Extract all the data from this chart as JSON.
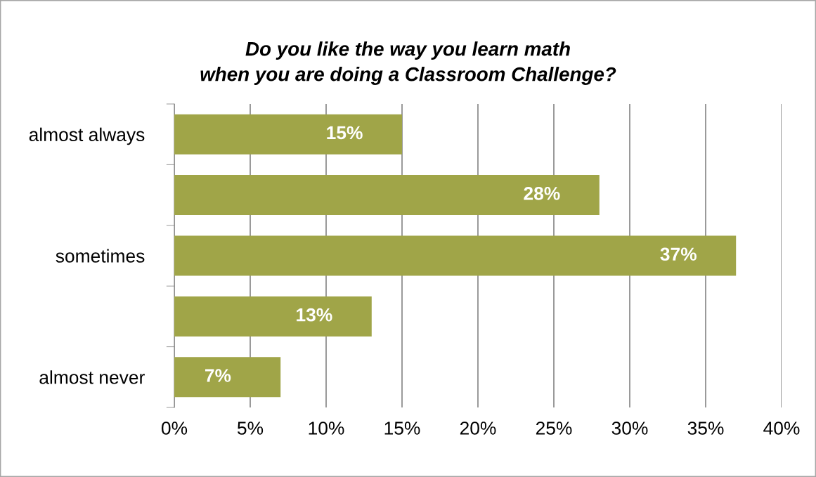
{
  "chart_data": {
    "type": "bar",
    "orientation": "horizontal",
    "title": "Do you like the way you learn math\nwhen you are doing a Classroom Challenge?",
    "categories": [
      "almost always",
      null,
      "sometimes",
      null,
      "almost never"
    ],
    "values": [
      15,
      28,
      37,
      13,
      7
    ],
    "value_labels": [
      "15%",
      "28%",
      "37%",
      "13%",
      "7%"
    ],
    "color": "#a0a548",
    "xlim": [
      0,
      40
    ],
    "xticks": [
      {
        "value": 0,
        "label": "0%"
      },
      {
        "value": 5,
        "label": "5%"
      },
      {
        "value": 10,
        "label": "10%"
      },
      {
        "value": 15,
        "label": "15%"
      },
      {
        "value": 20,
        "label": "20%"
      },
      {
        "value": 25,
        "label": "25%"
      },
      {
        "value": 30,
        "label": "30%"
      },
      {
        "value": 35,
        "label": "35%"
      },
      {
        "value": 40,
        "label": "40%"
      }
    ],
    "grid": "x",
    "legend": false
  }
}
